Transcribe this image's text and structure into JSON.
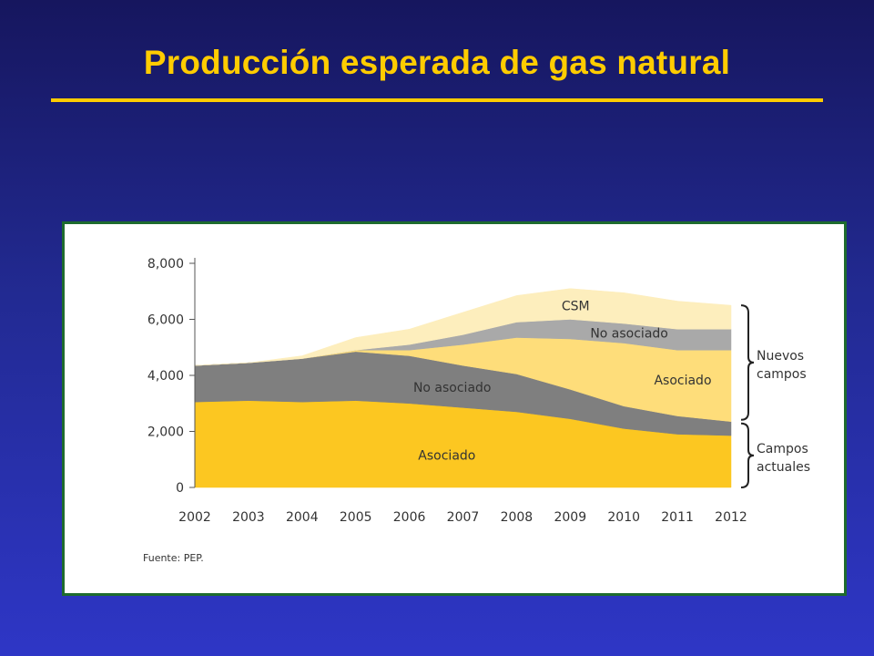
{
  "slide": {
    "title": "Producción esperada de gas natural"
  },
  "colors": {
    "title": "#ffcc00",
    "frame_border": "#1e6b2e",
    "asociado_actual": "#fcc721",
    "no_asociado_actual": "#7f7f7f",
    "asociado_nuevo": "#fedd7a",
    "no_asociado_nuevo": "#a9a9a9",
    "csm": "#fdeebd"
  },
  "chart_data": {
    "type": "area",
    "stacked": true,
    "x": [
      2002,
      2003,
      2004,
      2005,
      2006,
      2007,
      2008,
      2009,
      2010,
      2011,
      2012
    ],
    "x_tick_labels": [
      "2002",
      "2003",
      "2004",
      "2005",
      "2006",
      "2007",
      "2008",
      "2009",
      "2010",
      "2011",
      "2012"
    ],
    "ylim": [
      0,
      8000
    ],
    "y_ticks": [
      0,
      2000,
      4000,
      6000,
      8000
    ],
    "y_tick_labels": [
      "0",
      "2,000",
      "4,000",
      "6,000",
      "8,000"
    ],
    "grid": false,
    "series": [
      {
        "name": "Asociado",
        "group": "Campos actuales",
        "color": "#fcc721",
        "values": [
          3050,
          3100,
          3050,
          3100,
          3000,
          2850,
          2700,
          2450,
          2100,
          1900,
          1850
        ]
      },
      {
        "name": "No asociado",
        "group": "Campos actuales",
        "color": "#7f7f7f",
        "values": [
          1300,
          1350,
          1550,
          1750,
          1700,
          1500,
          1350,
          1050,
          800,
          650,
          500
        ]
      },
      {
        "name": "Asociado",
        "group": "Nuevos campos",
        "color": "#fedd7a",
        "values": [
          0,
          0,
          0,
          50,
          200,
          750,
          1300,
          1800,
          2250,
          2350,
          2550
        ]
      },
      {
        "name": "No asociado",
        "group": "Nuevos campos",
        "color": "#a9a9a9",
        "values": [
          0,
          0,
          0,
          0,
          200,
          350,
          550,
          700,
          700,
          750,
          750
        ]
      },
      {
        "name": "CSM",
        "group": "Nuevos campos",
        "color": "#fdeebd",
        "values": [
          0,
          0,
          100,
          450,
          550,
          800,
          950,
          1100,
          1100,
          1000,
          850
        ]
      }
    ],
    "area_labels": [
      "CSM",
      "No asociado",
      "Asociado",
      "No asociado",
      "Asociado"
    ],
    "brackets": [
      {
        "label_lines": [
          "Nuevos",
          "campos"
        ]
      },
      {
        "label_lines": [
          "Campos",
          "actuales"
        ]
      }
    ],
    "source": "Fuente: PEP."
  }
}
